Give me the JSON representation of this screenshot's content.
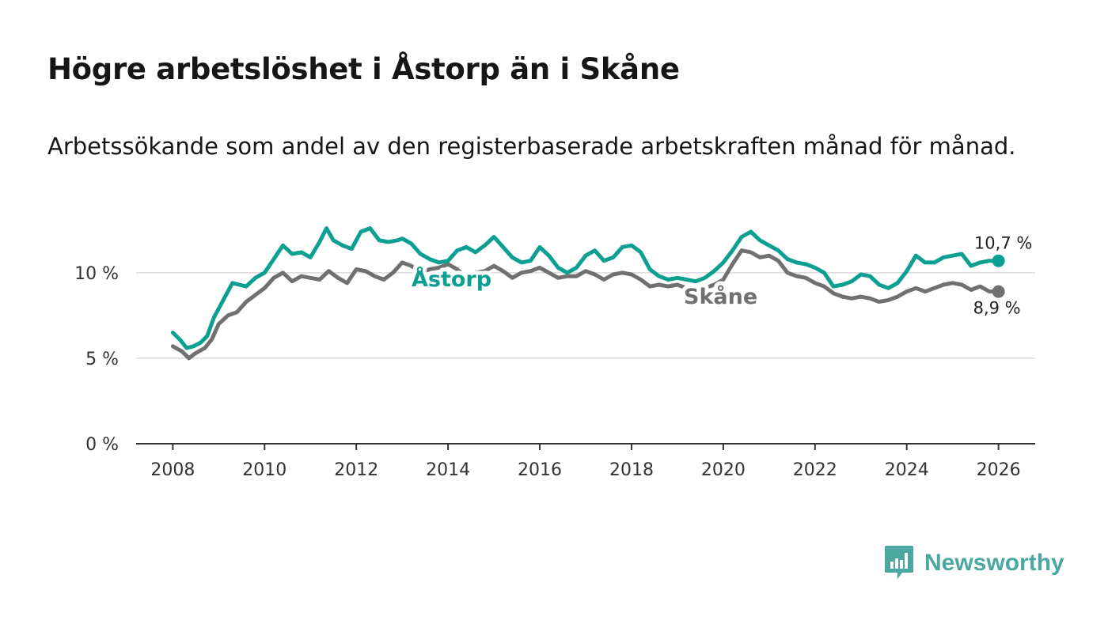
{
  "title": "Högre arbetslöshet i Åstorp än i Skåne",
  "subtitle": "Arbetssökande som andel av den registerbaserade arbetskraften månad för månad.",
  "brand": {
    "name": "Newsworthy",
    "color": "#4aa8a0",
    "icon": "bar-chart-speech-bubble-icon"
  },
  "chart_data": {
    "type": "line",
    "xlim": [
      2007.2,
      2026.8
    ],
    "ylim": [
      0,
      13
    ],
    "x_ticks": [
      2008,
      2010,
      2012,
      2014,
      2016,
      2018,
      2020,
      2022,
      2024,
      2026
    ],
    "x_tick_labels": [
      "2008",
      "2010",
      "2012",
      "2014",
      "2016",
      "2018",
      "2020",
      "2022",
      "2024",
      "2026"
    ],
    "y_ticks": [
      0,
      5,
      10
    ],
    "y_tick_labels": [
      "0 %",
      "5 %",
      "10 %"
    ],
    "gridlines": true,
    "series": [
      {
        "name": "Skåne",
        "color": "#707070",
        "end_label": "8,9 %",
        "points": [
          [
            2008.0,
            5.7
          ],
          [
            2008.2,
            5.4
          ],
          [
            2008.35,
            5.0
          ],
          [
            2008.5,
            5.3
          ],
          [
            2008.7,
            5.6
          ],
          [
            2008.85,
            6.1
          ],
          [
            2009.0,
            7.0
          ],
          [
            2009.2,
            7.5
          ],
          [
            2009.4,
            7.7
          ],
          [
            2009.6,
            8.3
          ],
          [
            2009.8,
            8.7
          ],
          [
            2010.0,
            9.1
          ],
          [
            2010.2,
            9.7
          ],
          [
            2010.4,
            10.0
          ],
          [
            2010.6,
            9.5
          ],
          [
            2010.8,
            9.8
          ],
          [
            2011.0,
            9.7
          ],
          [
            2011.2,
            9.6
          ],
          [
            2011.4,
            10.1
          ],
          [
            2011.6,
            9.7
          ],
          [
            2011.8,
            9.4
          ],
          [
            2012.0,
            10.2
          ],
          [
            2012.2,
            10.1
          ],
          [
            2012.4,
            9.8
          ],
          [
            2012.6,
            9.6
          ],
          [
            2012.8,
            10.0
          ],
          [
            2013.0,
            10.6
          ],
          [
            2013.2,
            10.4
          ],
          [
            2013.4,
            10.0
          ],
          [
            2013.6,
            10.2
          ],
          [
            2013.8,
            10.3
          ],
          [
            2014.0,
            10.5
          ],
          [
            2014.2,
            10.2
          ],
          [
            2014.4,
            9.7
          ],
          [
            2014.6,
            10.0
          ],
          [
            2014.8,
            10.1
          ],
          [
            2015.0,
            10.4
          ],
          [
            2015.2,
            10.1
          ],
          [
            2015.4,
            9.7
          ],
          [
            2015.6,
            10.0
          ],
          [
            2015.8,
            10.1
          ],
          [
            2016.0,
            10.3
          ],
          [
            2016.2,
            10.0
          ],
          [
            2016.4,
            9.7
          ],
          [
            2016.6,
            9.8
          ],
          [
            2016.8,
            9.8
          ],
          [
            2017.0,
            10.1
          ],
          [
            2017.2,
            9.9
          ],
          [
            2017.4,
            9.6
          ],
          [
            2017.6,
            9.9
          ],
          [
            2017.8,
            10.0
          ],
          [
            2018.0,
            9.9
          ],
          [
            2018.2,
            9.6
          ],
          [
            2018.4,
            9.2
          ],
          [
            2018.6,
            9.3
          ],
          [
            2018.8,
            9.2
          ],
          [
            2019.0,
            9.3
          ],
          [
            2019.2,
            9.1
          ],
          [
            2019.4,
            8.9
          ],
          [
            2019.6,
            9.1
          ],
          [
            2019.8,
            9.3
          ],
          [
            2020.0,
            9.6
          ],
          [
            2020.2,
            10.5
          ],
          [
            2020.4,
            11.3
          ],
          [
            2020.6,
            11.2
          ],
          [
            2020.8,
            10.9
          ],
          [
            2021.0,
            11.0
          ],
          [
            2021.2,
            10.7
          ],
          [
            2021.4,
            10.0
          ],
          [
            2021.6,
            9.8
          ],
          [
            2021.8,
            9.7
          ],
          [
            2022.0,
            9.4
          ],
          [
            2022.2,
            9.2
          ],
          [
            2022.4,
            8.8
          ],
          [
            2022.6,
            8.6
          ],
          [
            2022.8,
            8.5
          ],
          [
            2023.0,
            8.6
          ],
          [
            2023.2,
            8.5
          ],
          [
            2023.4,
            8.3
          ],
          [
            2023.6,
            8.4
          ],
          [
            2023.8,
            8.6
          ],
          [
            2024.0,
            8.9
          ],
          [
            2024.2,
            9.1
          ],
          [
            2024.4,
            8.9
          ],
          [
            2024.6,
            9.1
          ],
          [
            2024.8,
            9.3
          ],
          [
            2025.0,
            9.4
          ],
          [
            2025.2,
            9.3
          ],
          [
            2025.4,
            9.0
          ],
          [
            2025.6,
            9.2
          ],
          [
            2025.8,
            8.9
          ],
          [
            2026.0,
            8.9
          ]
        ]
      },
      {
        "name": "Åstorp",
        "color": "#0c9f92",
        "end_label": "10,7 %",
        "points": [
          [
            2008.0,
            6.5
          ],
          [
            2008.15,
            6.1
          ],
          [
            2008.3,
            5.6
          ],
          [
            2008.45,
            5.7
          ],
          [
            2008.6,
            5.9
          ],
          [
            2008.75,
            6.3
          ],
          [
            2008.9,
            7.4
          ],
          [
            2009.1,
            8.4
          ],
          [
            2009.3,
            9.4
          ],
          [
            2009.45,
            9.3
          ],
          [
            2009.6,
            9.2
          ],
          [
            2009.8,
            9.7
          ],
          [
            2010.0,
            10.0
          ],
          [
            2010.2,
            10.8
          ],
          [
            2010.4,
            11.6
          ],
          [
            2010.6,
            11.1
          ],
          [
            2010.8,
            11.2
          ],
          [
            2011.0,
            10.9
          ],
          [
            2011.2,
            11.8
          ],
          [
            2011.35,
            12.6
          ],
          [
            2011.5,
            11.9
          ],
          [
            2011.7,
            11.6
          ],
          [
            2011.9,
            11.4
          ],
          [
            2012.1,
            12.4
          ],
          [
            2012.3,
            12.6
          ],
          [
            2012.5,
            11.9
          ],
          [
            2012.7,
            11.8
          ],
          [
            2012.9,
            11.9
          ],
          [
            2013.0,
            12.0
          ],
          [
            2013.2,
            11.7
          ],
          [
            2013.4,
            11.1
          ],
          [
            2013.6,
            10.8
          ],
          [
            2013.8,
            10.6
          ],
          [
            2014.0,
            10.7
          ],
          [
            2014.2,
            11.3
          ],
          [
            2014.4,
            11.5
          ],
          [
            2014.6,
            11.2
          ],
          [
            2014.8,
            11.6
          ],
          [
            2015.0,
            12.1
          ],
          [
            2015.2,
            11.5
          ],
          [
            2015.4,
            10.9
          ],
          [
            2015.6,
            10.6
          ],
          [
            2015.8,
            10.7
          ],
          [
            2016.0,
            11.5
          ],
          [
            2016.2,
            11.0
          ],
          [
            2016.4,
            10.3
          ],
          [
            2016.6,
            10.0
          ],
          [
            2016.8,
            10.3
          ],
          [
            2017.0,
            11.0
          ],
          [
            2017.2,
            11.3
          ],
          [
            2017.4,
            10.7
          ],
          [
            2017.6,
            10.9
          ],
          [
            2017.8,
            11.5
          ],
          [
            2018.0,
            11.6
          ],
          [
            2018.2,
            11.2
          ],
          [
            2018.4,
            10.2
          ],
          [
            2018.6,
            9.8
          ],
          [
            2018.8,
            9.6
          ],
          [
            2019.0,
            9.7
          ],
          [
            2019.2,
            9.6
          ],
          [
            2019.4,
            9.5
          ],
          [
            2019.6,
            9.7
          ],
          [
            2019.8,
            10.1
          ],
          [
            2020.0,
            10.6
          ],
          [
            2020.2,
            11.3
          ],
          [
            2020.4,
            12.1
          ],
          [
            2020.6,
            12.4
          ],
          [
            2020.8,
            11.9
          ],
          [
            2021.0,
            11.6
          ],
          [
            2021.2,
            11.3
          ],
          [
            2021.4,
            10.8
          ],
          [
            2021.6,
            10.6
          ],
          [
            2021.8,
            10.5
          ],
          [
            2022.0,
            10.3
          ],
          [
            2022.2,
            10.0
          ],
          [
            2022.4,
            9.2
          ],
          [
            2022.6,
            9.3
          ],
          [
            2022.8,
            9.5
          ],
          [
            2023.0,
            9.9
          ],
          [
            2023.2,
            9.8
          ],
          [
            2023.4,
            9.3
          ],
          [
            2023.6,
            9.1
          ],
          [
            2023.8,
            9.4
          ],
          [
            2024.0,
            10.1
          ],
          [
            2024.2,
            11.0
          ],
          [
            2024.4,
            10.6
          ],
          [
            2024.6,
            10.6
          ],
          [
            2024.8,
            10.9
          ],
          [
            2025.0,
            11.0
          ],
          [
            2025.2,
            11.1
          ],
          [
            2025.4,
            10.4
          ],
          [
            2025.6,
            10.6
          ],
          [
            2025.8,
            10.7
          ],
          [
            2026.0,
            10.7
          ]
        ]
      }
    ]
  }
}
